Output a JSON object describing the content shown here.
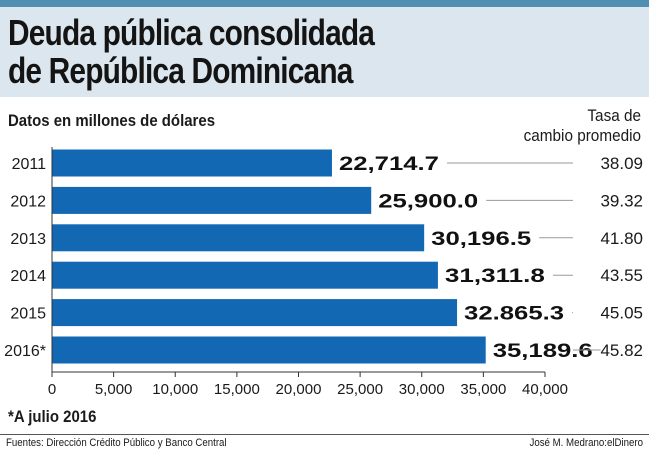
{
  "header": {
    "title_line1": "Deuda pública consolidada",
    "title_line2": "de República Dominicana"
  },
  "subtitle": "Datos en millones de dólares",
  "rate_header": {
    "line1": "Tasa de",
    "line2": "cambio promedio"
  },
  "colors": {
    "bar": "#1268b3",
    "title_band": "#dce6ee",
    "top_strip": "#4f8fb3",
    "leader_line": "#9a9a9a"
  },
  "chart_data": {
    "type": "bar",
    "orientation": "horizontal",
    "categories": [
      "2011",
      "2012",
      "2013",
      "2014",
      "2015",
      "2016*"
    ],
    "values": [
      22714.7,
      25900.0,
      30196.5,
      31311.8,
      32865.3,
      35189.6
    ],
    "value_labels": [
      "22,714.7",
      "25,900.0",
      "30,196.5",
      "31,311.8",
      "32.865.3",
      "35,189.6"
    ],
    "exchange_rates": [
      "38.09",
      "39.32",
      "41.80",
      "43.55",
      "45.05",
      "45.82"
    ],
    "xlim": [
      0,
      40000
    ],
    "x_ticks": [
      0,
      5000,
      10000,
      15000,
      20000,
      25000,
      30000,
      35000,
      40000
    ],
    "x_tick_labels": [
      "0",
      "5,000",
      "10,000",
      "15,000",
      "20,000",
      "25,000",
      "30,000",
      "35,000",
      "40,000"
    ],
    "title": "Deuda pública consolidada de República Dominicana",
    "xlabel": "",
    "ylabel": "",
    "grid": false,
    "legend": "none"
  },
  "footnote": "*A julio 2016",
  "footer": {
    "source": "Fuentes: Dirección Crédito Público y Banco Central",
    "credit": "José M. Medrano:elDinero"
  }
}
